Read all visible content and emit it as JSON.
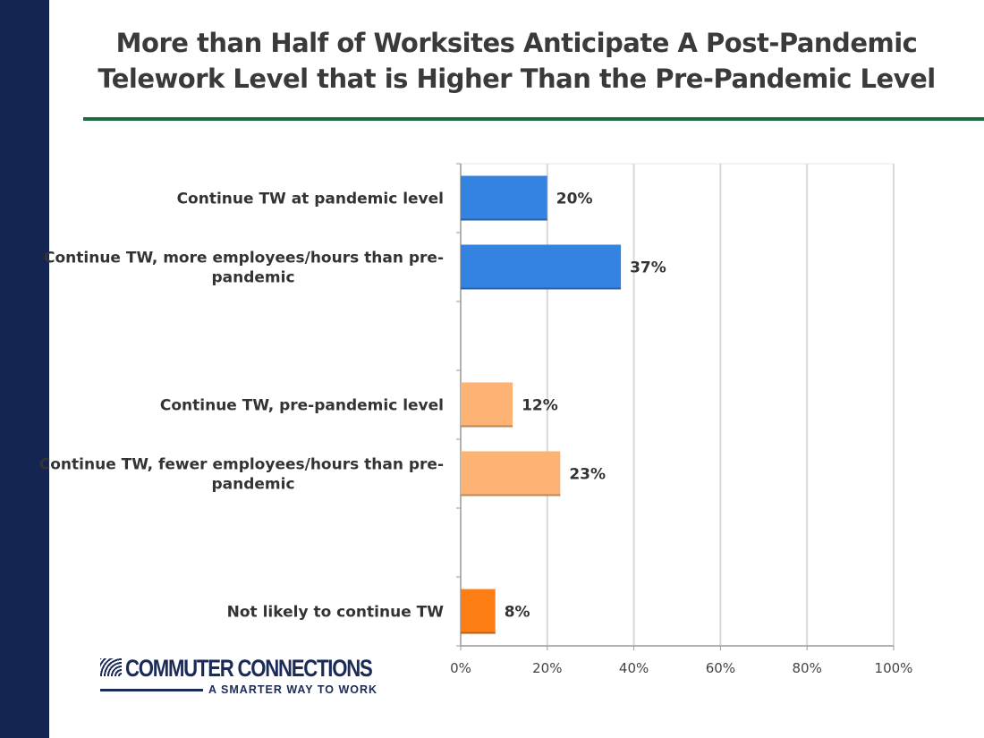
{
  "slide": {
    "title_line1": "More than Half of Worksites Anticipate A Post-Pandemic",
    "title_line2": "Telework Level that is Higher Than the Pre-Pandemic Level"
  },
  "logo": {
    "name": "COMMUTER CONNECTIONS",
    "tagline": "A SMARTER WAY TO WORK"
  },
  "colors": {
    "sidebar": "#142552",
    "rule": "#1d6b43",
    "blue": "#3583e0",
    "light_orange": "#fdb373",
    "orange": "#fd7e14"
  },
  "chart_data": {
    "type": "bar",
    "orientation": "horizontal",
    "categories": [
      [
        "Continue TW at pandemic level"
      ],
      [
        "Continue TW, more employees/hours than pre-",
        "pandemic"
      ],
      [
        ""
      ],
      [
        "Continue TW, pre-pandemic level"
      ],
      [
        "Continue TW, fewer employees/hours than pre-",
        "pandemic"
      ],
      [
        ""
      ],
      [
        "Not likely to continue TW"
      ]
    ],
    "values": [
      20,
      37,
      null,
      12,
      23,
      null,
      8
    ],
    "data_labels": [
      "20%",
      "37%",
      "",
      "12%",
      "23%",
      "",
      "8%"
    ],
    "bar_colors": [
      "#3583e0",
      "#3583e0",
      "",
      "#fdb373",
      "#fdb373",
      "",
      "#fd7e14"
    ],
    "xlim": [
      0,
      100
    ],
    "xticks": [
      0,
      20,
      40,
      60,
      80,
      100
    ],
    "xtick_labels": [
      "0%",
      "20%",
      "40%",
      "60%",
      "80%",
      "100%"
    ],
    "grid": true
  }
}
